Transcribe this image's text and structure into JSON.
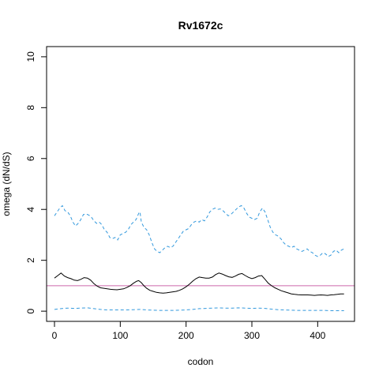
{
  "chart_data": {
    "type": "line",
    "title": "Rv1672c",
    "xlabel": "codon",
    "ylabel": "omega (dN/dS)",
    "xlim": [
      -12,
      456
    ],
    "ylim": [
      -0.4,
      10.4
    ],
    "xticks": [
      0,
      100,
      200,
      300,
      400
    ],
    "yticks": [
      0,
      2,
      4,
      6,
      8,
      10
    ],
    "grid": false,
    "reference_line": {
      "y": 1,
      "color": "#cc66aa"
    },
    "series": [
      {
        "style": "solid",
        "color": "#000000",
        "points": [
          [
            0,
            1.3
          ],
          [
            5,
            1.4
          ],
          [
            10,
            1.5
          ],
          [
            15,
            1.38
          ],
          [
            20,
            1.32
          ],
          [
            25,
            1.28
          ],
          [
            30,
            1.22
          ],
          [
            35,
            1.2
          ],
          [
            40,
            1.25
          ],
          [
            45,
            1.32
          ],
          [
            50,
            1.3
          ],
          [
            55,
            1.22
          ],
          [
            60,
            1.08
          ],
          [
            65,
            0.98
          ],
          [
            70,
            0.92
          ],
          [
            75,
            0.9
          ],
          [
            80,
            0.88
          ],
          [
            85,
            0.86
          ],
          [
            90,
            0.85
          ],
          [
            95,
            0.84
          ],
          [
            100,
            0.86
          ],
          [
            105,
            0.88
          ],
          [
            110,
            0.93
          ],
          [
            115,
            1.0
          ],
          [
            120,
            1.1
          ],
          [
            125,
            1.18
          ],
          [
            128,
            1.2
          ],
          [
            132,
            1.12
          ],
          [
            136,
            1.0
          ],
          [
            140,
            0.9
          ],
          [
            145,
            0.82
          ],
          [
            150,
            0.78
          ],
          [
            155,
            0.74
          ],
          [
            160,
            0.72
          ],
          [
            165,
            0.71
          ],
          [
            170,
            0.72
          ],
          [
            175,
            0.74
          ],
          [
            180,
            0.76
          ],
          [
            185,
            0.78
          ],
          [
            190,
            0.82
          ],
          [
            195,
            0.88
          ],
          [
            200,
            0.96
          ],
          [
            205,
            1.06
          ],
          [
            210,
            1.18
          ],
          [
            215,
            1.28
          ],
          [
            220,
            1.34
          ],
          [
            225,
            1.32
          ],
          [
            230,
            1.3
          ],
          [
            235,
            1.3
          ],
          [
            240,
            1.34
          ],
          [
            245,
            1.44
          ],
          [
            250,
            1.5
          ],
          [
            255,
            1.46
          ],
          [
            260,
            1.4
          ],
          [
            265,
            1.35
          ],
          [
            270,
            1.33
          ],
          [
            275,
            1.38
          ],
          [
            280,
            1.45
          ],
          [
            285,
            1.48
          ],
          [
            290,
            1.4
          ],
          [
            295,
            1.33
          ],
          [
            300,
            1.28
          ],
          [
            305,
            1.32
          ],
          [
            310,
            1.38
          ],
          [
            315,
            1.4
          ],
          [
            320,
            1.25
          ],
          [
            325,
            1.1
          ],
          [
            330,
            1.0
          ],
          [
            335,
            0.92
          ],
          [
            340,
            0.86
          ],
          [
            345,
            0.8
          ],
          [
            350,
            0.76
          ],
          [
            355,
            0.72
          ],
          [
            360,
            0.68
          ],
          [
            365,
            0.66
          ],
          [
            370,
            0.65
          ],
          [
            375,
            0.64
          ],
          [
            380,
            0.64
          ],
          [
            385,
            0.64
          ],
          [
            390,
            0.63
          ],
          [
            395,
            0.62
          ],
          [
            400,
            0.63
          ],
          [
            405,
            0.64
          ],
          [
            410,
            0.63
          ],
          [
            415,
            0.62
          ],
          [
            420,
            0.64
          ],
          [
            425,
            0.65
          ],
          [
            430,
            0.66
          ],
          [
            435,
            0.68
          ],
          [
            440,
            0.68
          ]
        ]
      },
      {
        "style": "dashed",
        "color": "#3399dd",
        "points": [
          [
            0,
            3.75
          ],
          [
            4,
            3.9
          ],
          [
            8,
            4.05
          ],
          [
            12,
            4.15
          ],
          [
            16,
            3.95
          ],
          [
            20,
            3.9
          ],
          [
            24,
            3.75
          ],
          [
            28,
            3.5
          ],
          [
            32,
            3.35
          ],
          [
            36,
            3.45
          ],
          [
            40,
            3.6
          ],
          [
            44,
            3.8
          ],
          [
            48,
            3.82
          ],
          [
            52,
            3.78
          ],
          [
            56,
            3.7
          ],
          [
            60,
            3.55
          ],
          [
            64,
            3.45
          ],
          [
            68,
            3.5
          ],
          [
            72,
            3.4
          ],
          [
            76,
            3.2
          ],
          [
            80,
            3.1
          ],
          [
            84,
            2.9
          ],
          [
            88,
            2.85
          ],
          [
            92,
            2.9
          ],
          [
            96,
            2.8
          ],
          [
            100,
            3.0
          ],
          [
            104,
            3.05
          ],
          [
            108,
            3.1
          ],
          [
            112,
            3.2
          ],
          [
            116,
            3.4
          ],
          [
            120,
            3.5
          ],
          [
            124,
            3.6
          ],
          [
            128,
            3.85
          ],
          [
            130,
            3.9
          ],
          [
            132,
            3.5
          ],
          [
            136,
            3.3
          ],
          [
            140,
            3.2
          ],
          [
            144,
            3.0
          ],
          [
            148,
            2.7
          ],
          [
            152,
            2.45
          ],
          [
            156,
            2.35
          ],
          [
            160,
            2.3
          ],
          [
            164,
            2.4
          ],
          [
            168,
            2.5
          ],
          [
            172,
            2.55
          ],
          [
            176,
            2.5
          ],
          [
            180,
            2.55
          ],
          [
            184,
            2.7
          ],
          [
            188,
            2.85
          ],
          [
            192,
            3.0
          ],
          [
            196,
            3.15
          ],
          [
            200,
            3.2
          ],
          [
            204,
            3.25
          ],
          [
            208,
            3.4
          ],
          [
            212,
            3.5
          ],
          [
            216,
            3.55
          ],
          [
            220,
            3.5
          ],
          [
            224,
            3.6
          ],
          [
            228,
            3.55
          ],
          [
            232,
            3.7
          ],
          [
            236,
            3.9
          ],
          [
            240,
            4.0
          ],
          [
            244,
            4.05
          ],
          [
            248,
            4.0
          ],
          [
            252,
            4.02
          ],
          [
            256,
            3.95
          ],
          [
            260,
            3.85
          ],
          [
            264,
            3.75
          ],
          [
            268,
            3.8
          ],
          [
            272,
            3.9
          ],
          [
            276,
            4.0
          ],
          [
            280,
            4.1
          ],
          [
            284,
            4.15
          ],
          [
            288,
            4.05
          ],
          [
            292,
            3.85
          ],
          [
            296,
            3.7
          ],
          [
            300,
            3.65
          ],
          [
            304,
            3.6
          ],
          [
            308,
            3.65
          ],
          [
            312,
            3.9
          ],
          [
            316,
            4.05
          ],
          [
            320,
            3.9
          ],
          [
            324,
            3.6
          ],
          [
            328,
            3.3
          ],
          [
            332,
            3.1
          ],
          [
            336,
            3.0
          ],
          [
            340,
            2.95
          ],
          [
            344,
            2.85
          ],
          [
            348,
            2.7
          ],
          [
            352,
            2.6
          ],
          [
            356,
            2.55
          ],
          [
            360,
            2.5
          ],
          [
            364,
            2.55
          ],
          [
            368,
            2.45
          ],
          [
            372,
            2.4
          ],
          [
            376,
            2.35
          ],
          [
            380,
            2.4
          ],
          [
            384,
            2.45
          ],
          [
            388,
            2.35
          ],
          [
            392,
            2.3
          ],
          [
            396,
            2.2
          ],
          [
            400,
            2.15
          ],
          [
            404,
            2.2
          ],
          [
            408,
            2.3
          ],
          [
            412,
            2.25
          ],
          [
            416,
            2.15
          ],
          [
            420,
            2.2
          ],
          [
            424,
            2.35
          ],
          [
            428,
            2.4
          ],
          [
            432,
            2.3
          ],
          [
            436,
            2.4
          ],
          [
            440,
            2.45
          ]
        ]
      },
      {
        "style": "dashed",
        "color": "#3399dd",
        "points": [
          [
            0,
            0.07
          ],
          [
            10,
            0.1
          ],
          [
            20,
            0.12
          ],
          [
            30,
            0.11
          ],
          [
            40,
            0.12
          ],
          [
            50,
            0.13
          ],
          [
            60,
            0.1
          ],
          [
            70,
            0.07
          ],
          [
            80,
            0.05
          ],
          [
            90,
            0.05
          ],
          [
            100,
            0.05
          ],
          [
            110,
            0.05
          ],
          [
            120,
            0.06
          ],
          [
            130,
            0.07
          ],
          [
            140,
            0.05
          ],
          [
            150,
            0.04
          ],
          [
            160,
            0.03
          ],
          [
            170,
            0.03
          ],
          [
            180,
            0.03
          ],
          [
            190,
            0.04
          ],
          [
            200,
            0.05
          ],
          [
            210,
            0.07
          ],
          [
            220,
            0.1
          ],
          [
            230,
            0.11
          ],
          [
            240,
            0.12
          ],
          [
            250,
            0.13
          ],
          [
            260,
            0.12
          ],
          [
            270,
            0.12
          ],
          [
            280,
            0.13
          ],
          [
            290,
            0.12
          ],
          [
            300,
            0.11
          ],
          [
            310,
            0.12
          ],
          [
            320,
            0.11
          ],
          [
            330,
            0.08
          ],
          [
            340,
            0.06
          ],
          [
            350,
            0.05
          ],
          [
            360,
            0.04
          ],
          [
            370,
            0.03
          ],
          [
            380,
            0.03
          ],
          [
            390,
            0.03
          ],
          [
            400,
            0.03
          ],
          [
            410,
            0.03
          ],
          [
            420,
            0.02
          ],
          [
            430,
            0.02
          ],
          [
            440,
            0.02
          ]
        ]
      }
    ]
  }
}
